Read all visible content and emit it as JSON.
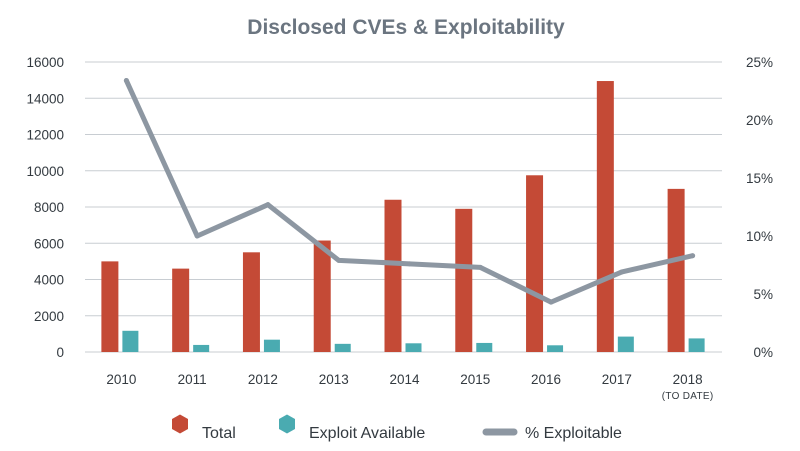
{
  "chart_data": {
    "type": "bar",
    "title": "Disclosed CVEs & Exploitability",
    "categories": [
      "2010",
      "2011",
      "2012",
      "2013",
      "2014",
      "2015",
      "2016",
      "2017",
      "2018"
    ],
    "category_sublabels": [
      "",
      "",
      "",
      "",
      "",
      "",
      "",
      "",
      "(TO DATE)"
    ],
    "series": [
      {
        "name": "Total",
        "type": "bar",
        "axis": "left",
        "color": "#c44a36",
        "values": [
          5000,
          4600,
          5500,
          6150,
          8400,
          7900,
          9750,
          14950,
          9000
        ]
      },
      {
        "name": "Exploit Available",
        "type": "bar",
        "axis": "left",
        "color": "#4aabb1",
        "values": [
          1170,
          390,
          680,
          450,
          480,
          500,
          370,
          850,
          750
        ]
      },
      {
        "name": "% Exploitable",
        "type": "line",
        "axis": "right",
        "color": "#8d97a2",
        "values": [
          23.4,
          10.0,
          12.7,
          7.9,
          7.6,
          7.3,
          4.3,
          6.9,
          8.3
        ]
      }
    ],
    "ylim_left": [
      0,
      16000
    ],
    "yticks_left": [
      0,
      2000,
      4000,
      6000,
      8000,
      10000,
      12000,
      14000,
      16000
    ],
    "ylim_right": [
      0,
      25
    ],
    "yticks_right": [
      "0%",
      "5%",
      "10%",
      "15%",
      "20%",
      "25%"
    ],
    "grid": true,
    "legend_position": "bottom"
  }
}
